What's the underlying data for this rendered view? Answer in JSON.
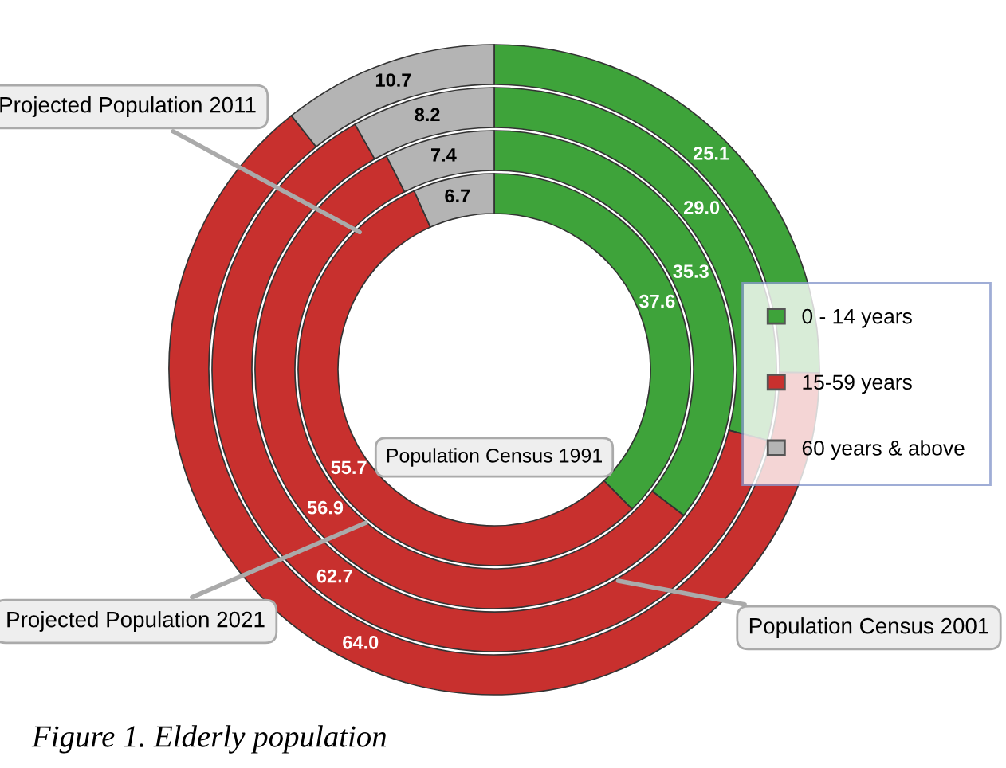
{
  "chart_data": {
    "type": "donut",
    "categories": [
      "0 - 14 years",
      "15-59 years",
      "60 years & above"
    ],
    "colors": [
      "#3ea33a",
      "#c8302e",
      "#b4b4b4"
    ],
    "series": [
      {
        "name": "Projected Population 2021",
        "values": [
          25.1,
          64.0,
          10.7
        ],
        "value_labels": [
          "25.1",
          "64.0",
          "10.7"
        ]
      },
      {
        "name": "Projected Population 2011",
        "values": [
          29.0,
          62.7,
          8.2
        ],
        "value_labels": [
          "29.0",
          "62.7",
          "8.2"
        ]
      },
      {
        "name": "Population Census 2001",
        "values": [
          35.3,
          56.9,
          7.4
        ],
        "value_labels": [
          "35.3",
          "56.9",
          "7.4"
        ]
      },
      {
        "name": "Population Census 1991",
        "values": [
          37.6,
          55.7,
          6.7
        ],
        "value_labels": [
          "37.6",
          "55.7",
          "6.7"
        ]
      }
    ],
    "legend": "right",
    "annotations": [
      "Figure 1. Elderly population"
    ]
  }
}
